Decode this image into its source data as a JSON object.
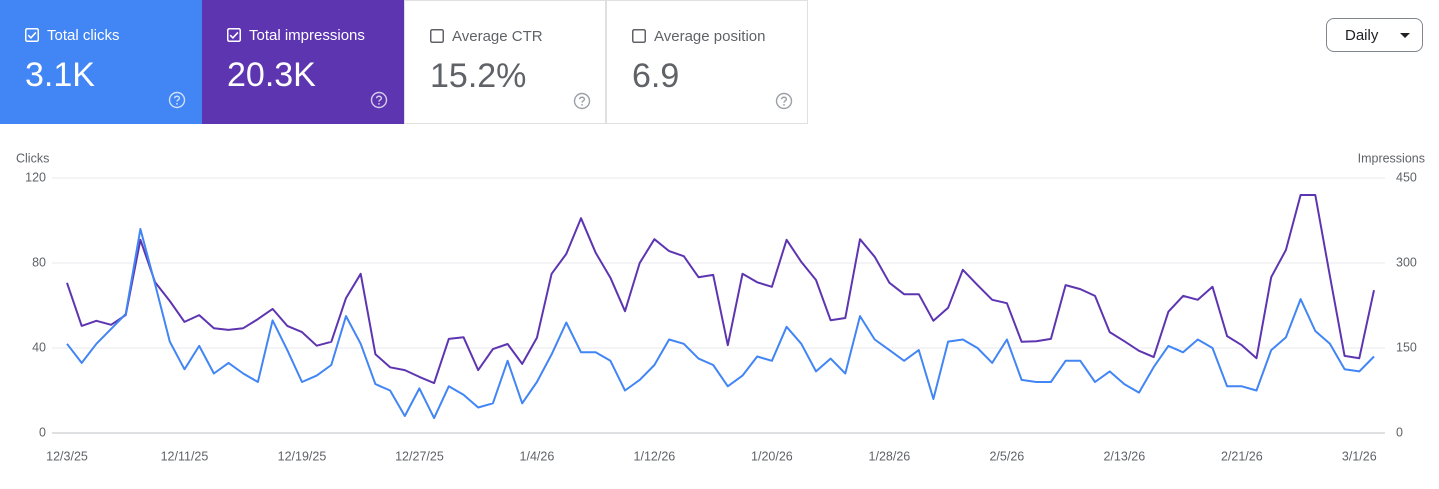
{
  "metrics": [
    {
      "label": "Total clicks",
      "value": "3.1K",
      "selected": true,
      "color": "#4285f4"
    },
    {
      "label": "Total impressions",
      "value": "20.3K",
      "selected": true,
      "color": "#5e35b1"
    },
    {
      "label": "Average CTR",
      "value": "15.2%",
      "selected": false
    },
    {
      "label": "Average position",
      "value": "6.9",
      "selected": false
    }
  ],
  "period_select": "Daily",
  "chart_data": {
    "type": "line",
    "grid": true,
    "categories": [
      "12/3/25",
      null,
      null,
      null,
      null,
      null,
      null,
      null,
      "12/11/25",
      null,
      null,
      null,
      null,
      null,
      null,
      null,
      "12/19/25",
      null,
      null,
      null,
      null,
      null,
      null,
      null,
      "12/27/25",
      null,
      null,
      null,
      null,
      null,
      null,
      null,
      "1/4/26",
      null,
      null,
      null,
      null,
      null,
      null,
      null,
      "1/12/26",
      null,
      null,
      null,
      null,
      null,
      null,
      null,
      "1/20/26",
      null,
      null,
      null,
      null,
      null,
      null,
      null,
      "1/28/26",
      null,
      null,
      null,
      null,
      null,
      null,
      null,
      "2/5/26",
      null,
      null,
      null,
      null,
      null,
      null,
      null,
      "2/13/26",
      null,
      null,
      null,
      null,
      null,
      null,
      null,
      "2/21/26",
      null,
      null,
      null,
      null,
      null,
      null,
      null,
      "3/1/26",
      null
    ],
    "series": [
      {
        "name": "Clicks",
        "color": "#4285f4",
        "axis": "y",
        "values": [
          42,
          33,
          42,
          49,
          56,
          96,
          70,
          43,
          30,
          41,
          28,
          33,
          28,
          24,
          53,
          39,
          24,
          27,
          32,
          55,
          42,
          23,
          20,
          8,
          21,
          7,
          22,
          18,
          12,
          14,
          34,
          14,
          24,
          37,
          52,
          38,
          38,
          34,
          20,
          25,
          32,
          44,
          42,
          35,
          32,
          22,
          27,
          36,
          34,
          50,
          42,
          29,
          35,
          28,
          55,
          44,
          39,
          34,
          39,
          16,
          43,
          44,
          40,
          33,
          44,
          25,
          24,
          24,
          34,
          34,
          24,
          29,
          23,
          19,
          31,
          41,
          38,
          44,
          40,
          22,
          22,
          20,
          39,
          45,
          63,
          48,
          42,
          30,
          29,
          36
        ]
      },
      {
        "name": "Impressions",
        "color": "#5e35b1",
        "axis": "y2",
        "values": [
          265,
          189,
          198,
          191,
          208,
          341,
          266,
          233,
          196,
          208,
          185,
          182,
          185,
          201,
          219,
          189,
          178,
          154,
          161,
          238,
          281,
          139,
          116,
          111,
          99,
          88,
          166,
          169,
          111,
          148,
          157,
          122,
          168,
          281,
          316,
          379,
          318,
          274,
          215,
          300,
          342,
          321,
          312,
          275,
          279,
          155,
          281,
          266,
          258,
          341,
          302,
          270,
          199,
          203,
          342,
          311,
          265,
          245,
          245,
          198,
          221,
          288,
          261,
          235,
          229,
          161,
          162,
          166,
          261,
          254,
          242,
          178,
          162,
          145,
          134,
          214,
          242,
          235,
          258,
          171,
          155,
          132,
          275,
          323,
          420,
          420,
          277,
          136,
          132,
          252
        ]
      }
    ],
    "ylim": [
      0,
      120
    ],
    "yticks": [
      0,
      40,
      80,
      120
    ],
    "y2lim": [
      0,
      450
    ],
    "y2ticks": [
      0,
      150,
      300,
      450
    ]
  }
}
